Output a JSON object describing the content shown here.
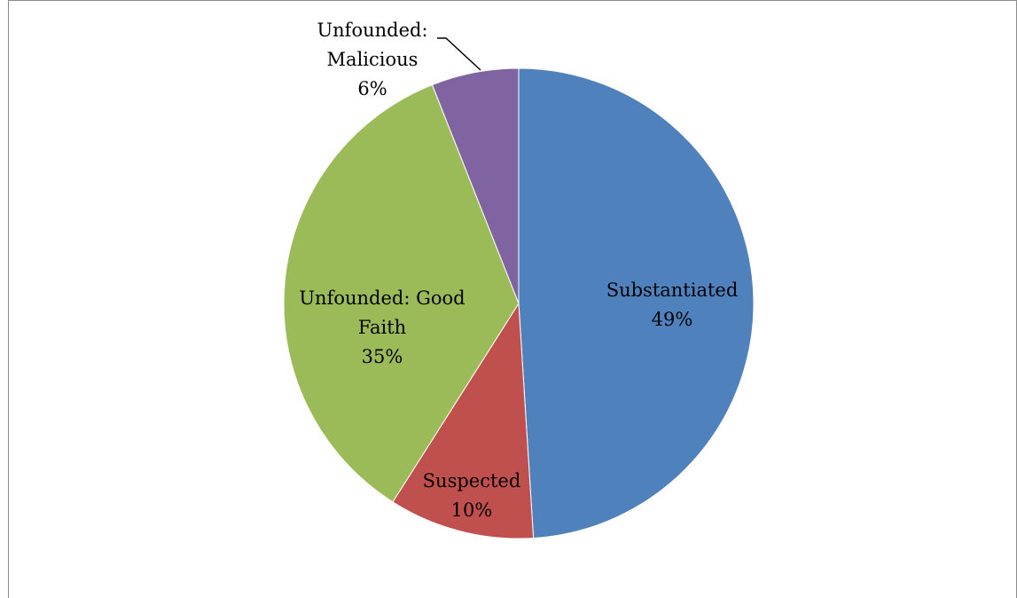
{
  "chart_data": {
    "type": "pie",
    "title": "",
    "slices": [
      {
        "label": "Substantiated",
        "percent_label": "49%",
        "value": 49,
        "color": "#4F81BD"
      },
      {
        "label": "Suspected",
        "percent_label": "10%",
        "value": 10,
        "color": "#C0504D"
      },
      {
        "label": "Unfounded: Good Faith",
        "percent_label": "35%",
        "value": 35,
        "color": "#9BBB59"
      },
      {
        "label": "Unfounded: Malicious",
        "percent_label": "6%",
        "value": 6,
        "color": "#8064A2"
      }
    ],
    "legend": "none"
  }
}
